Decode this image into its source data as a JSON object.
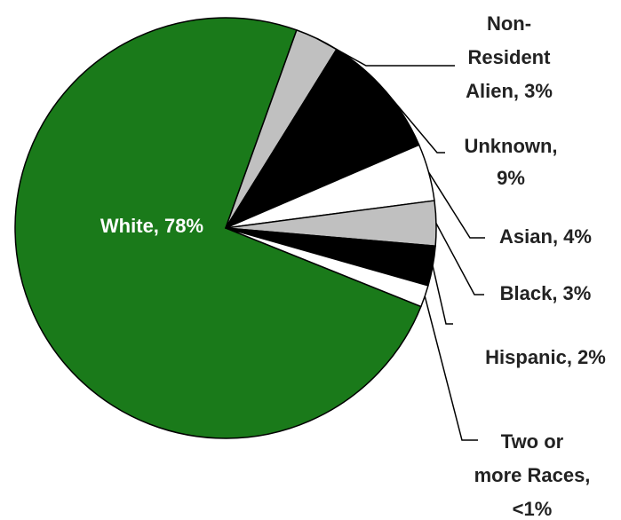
{
  "chart_data": {
    "type": "pie",
    "title": "",
    "slices": [
      {
        "name": "White",
        "label_lines": [
          "White, 78%"
        ],
        "value": 78,
        "color": "#1a7a1a",
        "label_inside": true
      },
      {
        "name": "Non-Resident Alien",
        "label_lines": [
          "Non-",
          "Resident",
          "Alien, 3%"
        ],
        "value": 3,
        "color": "#c0c0c0"
      },
      {
        "name": "Unknown",
        "label_lines": [
          "Unknown,",
          "9%"
        ],
        "value": 9,
        "color": "#000000"
      },
      {
        "name": "Asian",
        "label_lines": [
          "Asian, 4%"
        ],
        "value": 4,
        "color": "#ffffff"
      },
      {
        "name": "Black",
        "label_lines": [
          "Black, 3%"
        ],
        "value": 3,
        "color": "#c0c0c0"
      },
      {
        "name": "Hispanic",
        "label_lines": [
          "Hispanic, 2%"
        ],
        "value": 2,
        "color": "#000000"
      },
      {
        "name": "Two or more Races",
        "label_lines": [
          "Two or",
          "more Races,",
          "<1%"
        ],
        "value": 0.5,
        "color": "#ffffff"
      }
    ],
    "stroke_color": "#000000"
  }
}
